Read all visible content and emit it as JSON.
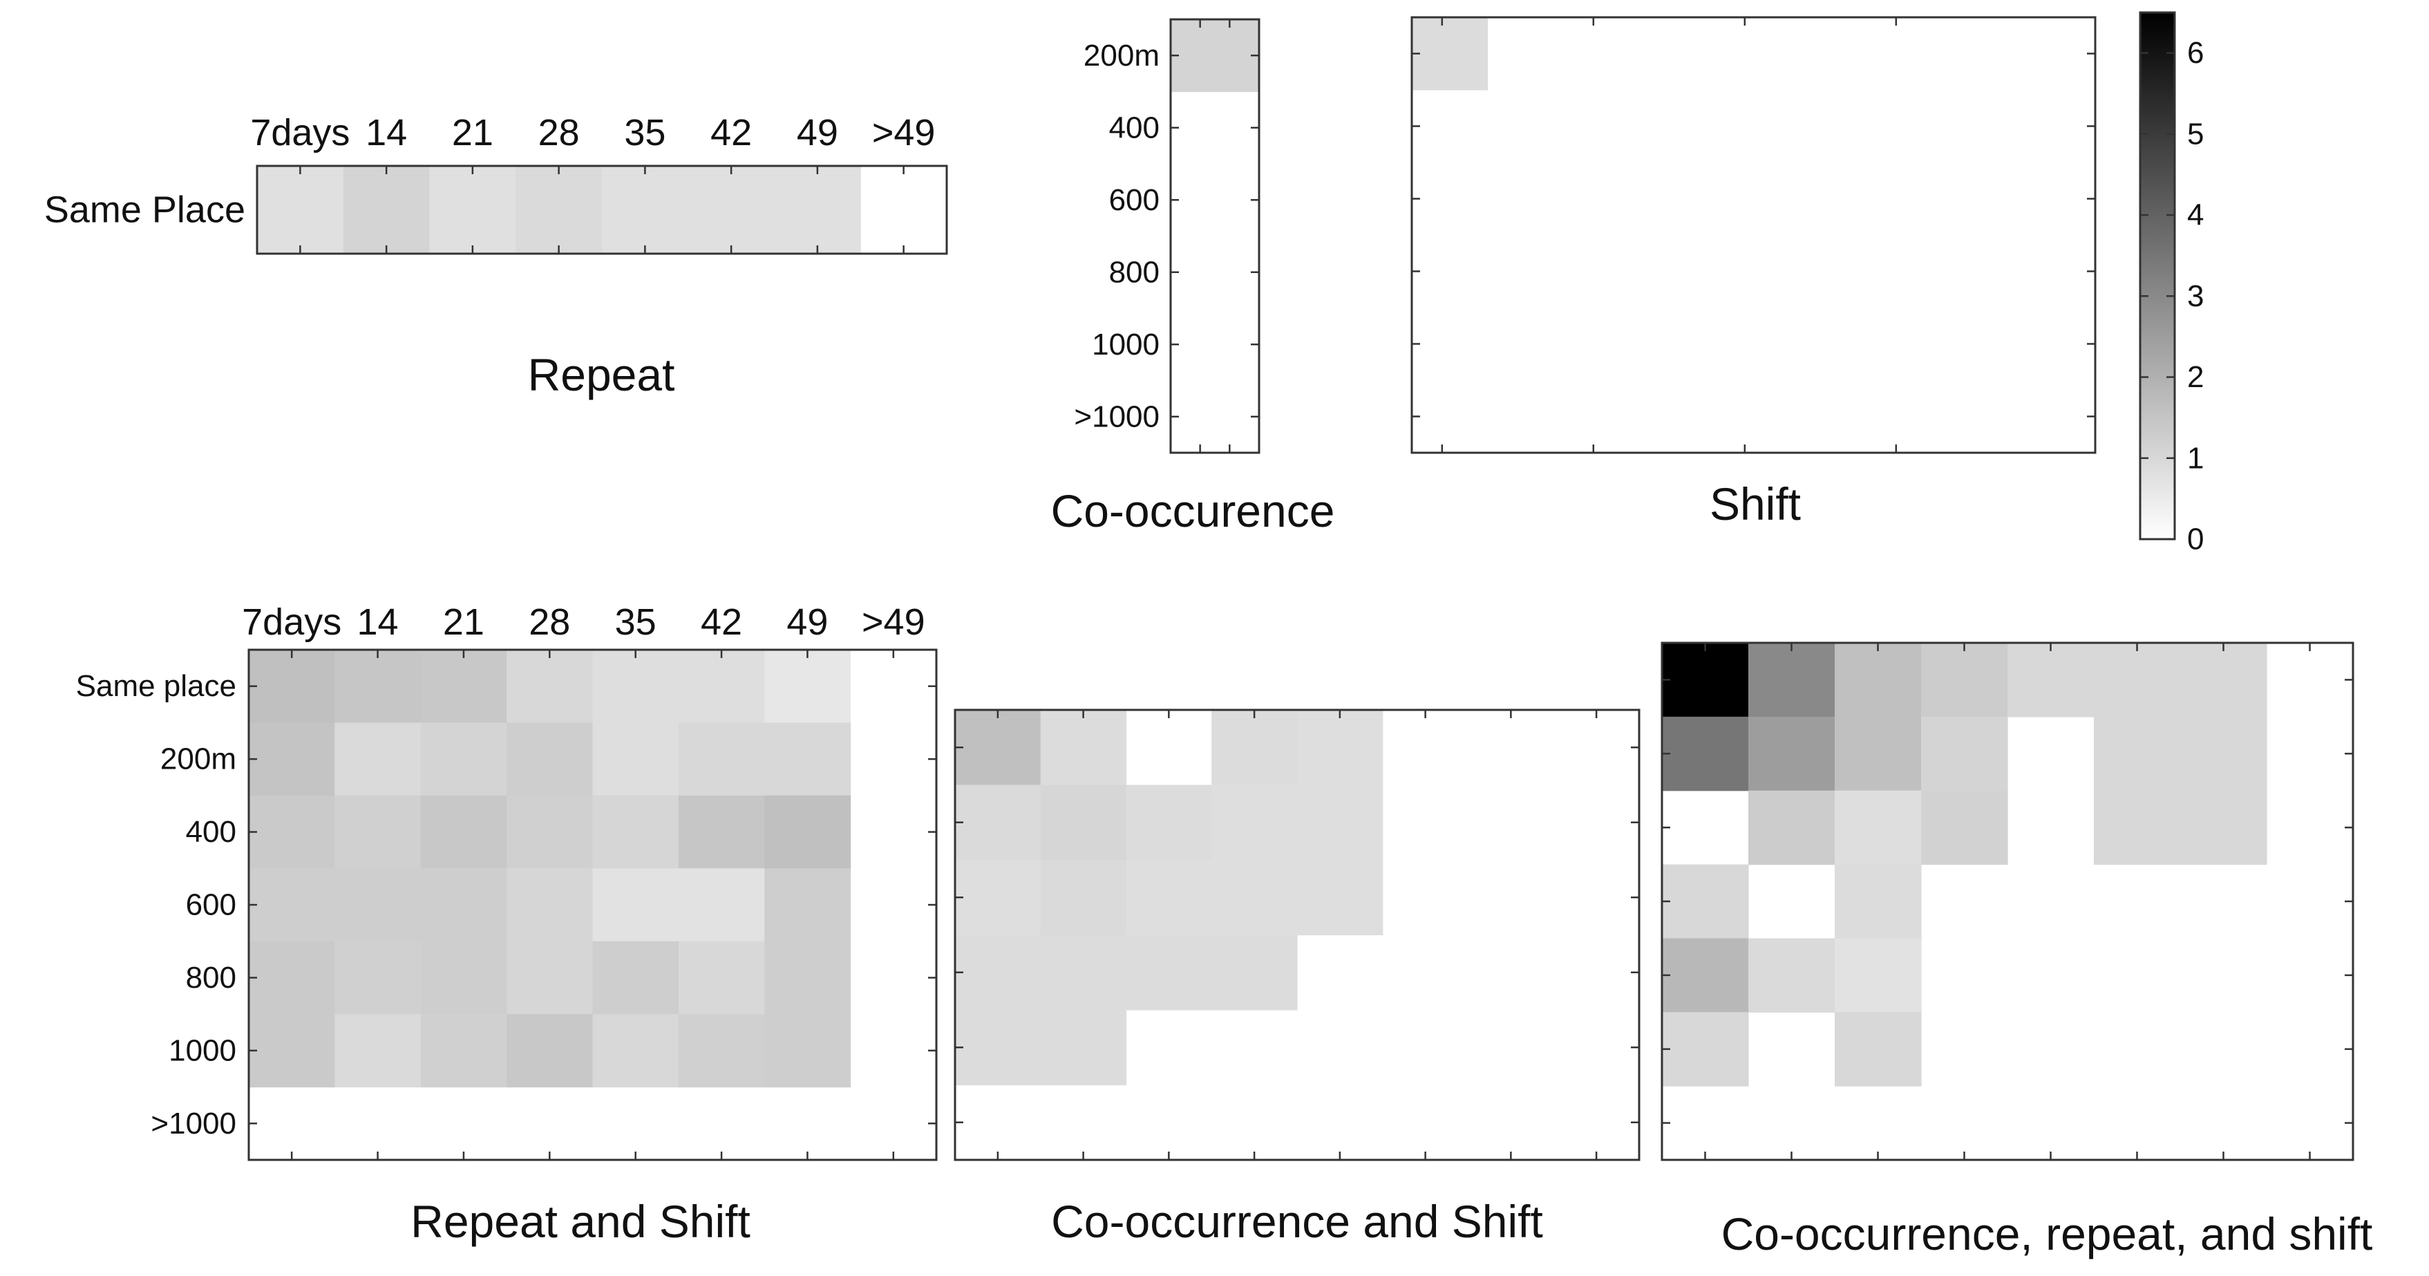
{
  "chart_data": {
    "type": "heatmap",
    "colormap": "gray_r",
    "colorbar": {
      "min": 0,
      "max": 6.5,
      "ticks": [
        "0",
        "1",
        "2",
        "3",
        "4",
        "5",
        "6"
      ]
    },
    "time_labels": [
      "7days",
      "14",
      "21",
      "28",
      "35",
      "42",
      "49",
      ">49"
    ],
    "panels": [
      {
        "id": "repeat",
        "title": "Repeat",
        "row_labels": [
          "Same Place"
        ],
        "col_labels": [
          "7days",
          "14",
          "21",
          "28",
          "35",
          "42",
          "49",
          ">49"
        ],
        "values": [
          [
            0.8,
            1.1,
            0.8,
            0.95,
            0.8,
            0.8,
            0.8,
            0
          ]
        ]
      },
      {
        "id": "co-occurrence",
        "title": "Co-occurence",
        "row_labels": [
          "200m",
          "400",
          "600",
          "800",
          "1000",
          ">1000"
        ],
        "col_labels": [],
        "values": [
          [
            1.1
          ],
          [
            0
          ],
          [
            0
          ],
          [
            0
          ],
          [
            0
          ],
          [
            0
          ]
        ]
      },
      {
        "id": "shift",
        "title": "Shift",
        "row_labels": [],
        "col_labels": [],
        "values": [
          [
            0.9,
            0,
            0,
            0,
            0,
            0,
            0,
            0
          ],
          [
            0,
            0,
            0,
            0,
            0,
            0,
            0,
            0
          ],
          [
            0,
            0,
            0,
            0,
            0,
            0,
            0,
            0
          ],
          [
            0,
            0,
            0,
            0,
            0,
            0,
            0,
            0
          ],
          [
            0,
            0,
            0,
            0,
            0,
            0,
            0,
            0
          ],
          [
            0,
            0,
            0,
            0,
            0,
            0,
            0,
            0
          ]
        ]
      },
      {
        "id": "repeat-and-shift",
        "title": "Repeat and Shift",
        "row_labels": [
          "Same place",
          "200m",
          "400",
          "600",
          "800",
          "1000",
          ">1000"
        ],
        "col_labels": [
          "7days",
          "14",
          "21",
          "28",
          "35",
          "42",
          "49",
          ">49"
        ],
        "values": [
          [
            1.6,
            1.45,
            1.4,
            1.0,
            0.85,
            0.85,
            0.6,
            0
          ],
          [
            1.5,
            0.95,
            1.1,
            1.25,
            0.85,
            1.0,
            1.0,
            0
          ],
          [
            1.35,
            1.2,
            1.4,
            1.2,
            1.05,
            1.45,
            1.6,
            0
          ],
          [
            1.25,
            1.25,
            1.25,
            1.05,
            0.75,
            0.75,
            1.25,
            0
          ],
          [
            1.35,
            1.2,
            1.25,
            1.05,
            1.25,
            1.0,
            1.25,
            0
          ],
          [
            1.35,
            0.95,
            1.2,
            1.4,
            1.0,
            1.2,
            1.25,
            0
          ],
          [
            0,
            0,
            0,
            0,
            0,
            0,
            0,
            0
          ]
        ]
      },
      {
        "id": "co-occurrence-and-shift",
        "title": "Co-occurrence and Shift",
        "row_labels": [],
        "col_labels": [],
        "values": [
          [
            1.6,
            0.9,
            0,
            0.9,
            0.85,
            0,
            0,
            0
          ],
          [
            0.95,
            1.05,
            0.9,
            0.85,
            0.85,
            0,
            0,
            0
          ],
          [
            0.85,
            0.95,
            0.85,
            0.85,
            0.85,
            0,
            0,
            0
          ],
          [
            0.9,
            0.9,
            0.9,
            0.9,
            0,
            0,
            0,
            0
          ],
          [
            0.9,
            0.9,
            0,
            0,
            0,
            0,
            0,
            0
          ],
          [
            0,
            0,
            0,
            0,
            0,
            0,
            0,
            0
          ]
        ]
      },
      {
        "id": "co-occurrence-repeat-and-shift",
        "title": "Co-occurrence, repeat, and shift",
        "row_labels": [],
        "col_labels": [],
        "values": [
          [
            6.5,
            3.0,
            1.6,
            1.3,
            1.0,
            1.0,
            1.0,
            0
          ],
          [
            3.5,
            2.5,
            1.6,
            1.1,
            0,
            1.0,
            1.0,
            0
          ],
          [
            0,
            1.3,
            0.85,
            1.15,
            0,
            1.0,
            1.0,
            0
          ],
          [
            1.0,
            0,
            0.9,
            0,
            0,
            0,
            0,
            0
          ],
          [
            1.8,
            0.95,
            0.75,
            0,
            0,
            0,
            0,
            0
          ],
          [
            1.0,
            0,
            1.0,
            0,
            0,
            0,
            0,
            0
          ],
          [
            0,
            0,
            0,
            0,
            0,
            0,
            0,
            0
          ]
        ]
      }
    ]
  }
}
